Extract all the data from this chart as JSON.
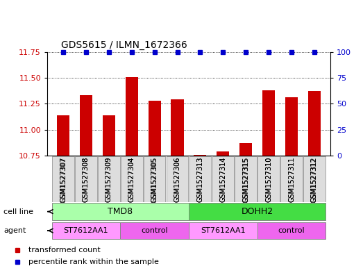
{
  "title": "GDS5615 / ILMN_1672366",
  "samples": [
    "GSM1527307",
    "GSM1527308",
    "GSM1527309",
    "GSM1527304",
    "GSM1527305",
    "GSM1527306",
    "GSM1527313",
    "GSM1527314",
    "GSM1527315",
    "GSM1527310",
    "GSM1527311",
    "GSM1527312"
  ],
  "red_values": [
    11.14,
    11.33,
    11.14,
    11.51,
    11.28,
    11.29,
    10.76,
    10.79,
    10.87,
    11.38,
    11.31,
    11.37
  ],
  "blue_percentiles": [
    100,
    100,
    100,
    100,
    100,
    100,
    100,
    100,
    100,
    100,
    100,
    100
  ],
  "ylim_left": [
    10.75,
    11.75
  ],
  "ylim_right": [
    0,
    100
  ],
  "yticks_left": [
    10.75,
    11.0,
    11.25,
    11.5,
    11.75
  ],
  "yticks_right": [
    0,
    25,
    50,
    75,
    100
  ],
  "cell_line_groups": [
    {
      "label": "TMD8",
      "start": 0,
      "end": 6,
      "color": "#AAFFAA"
    },
    {
      "label": "DOHH2",
      "start": 6,
      "end": 12,
      "color": "#44DD44"
    }
  ],
  "agent_groups": [
    {
      "label": "ST7612AA1",
      "start": 0,
      "end": 3,
      "color": "#FF99FF"
    },
    {
      "label": "control",
      "start": 3,
      "end": 6,
      "color": "#EE66EE"
    },
    {
      "label": "ST7612AA1",
      "start": 6,
      "end": 9,
      "color": "#FF99FF"
    },
    {
      "label": "control",
      "start": 9,
      "end": 12,
      "color": "#EE66EE"
    }
  ],
  "bar_color": "#CC0000",
  "dot_color": "#0000CC",
  "left_tick_color": "#CC0000",
  "right_tick_color": "#0000CC",
  "legend_items": [
    {
      "label": "transformed count",
      "color": "#CC0000"
    },
    {
      "label": "percentile rank within the sample",
      "color": "#0000CC"
    }
  ],
  "cell_line_label": "cell line",
  "agent_label": "agent"
}
